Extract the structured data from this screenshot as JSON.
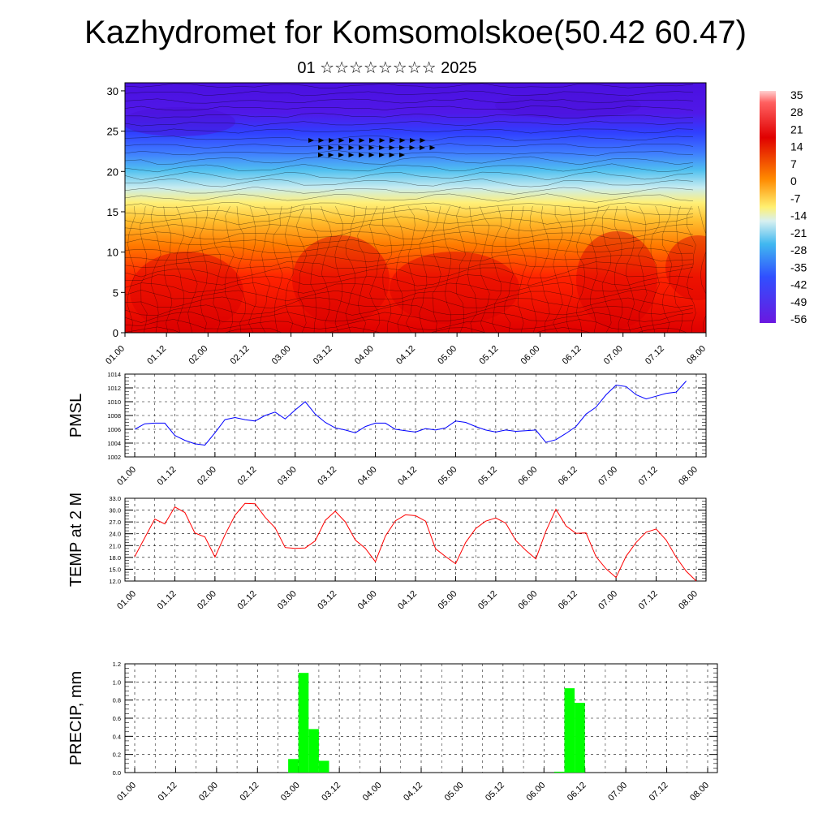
{
  "title": "Kazhydromet for Komsomolskoe(50.42 60.47)",
  "subtitle": "01 ☆☆☆☆☆☆☆☆ 2025",
  "chart_data": [
    {
      "type": "heatmap",
      "xlabel": "",
      "ylabel": "",
      "x_ticklabels": [
        "01.00",
        "01.12",
        "02.00",
        "02.12",
        "03.00",
        "03.12",
        "04.00",
        "04.12",
        "05.00",
        "05.12",
        "06.00",
        "06.12",
        "07.00",
        "07.12",
        "08.00"
      ],
      "y_ticks": [
        0,
        5,
        10,
        15,
        20,
        25,
        30
      ],
      "ylim": [
        0,
        31
      ],
      "colorbar_labels": [
        "35",
        "28",
        "21",
        "14",
        "7",
        "0",
        "-7",
        "-14",
        "-21",
        "-28",
        "-35",
        "-42",
        "-49",
        "-56"
      ],
      "colors": {
        "hot": "#e60000",
        "warm": "#ff9a00",
        "mild": "#ffe860",
        "cool": "#50c0f0",
        "cold": "#3050ff",
        "coldest": "#5010e0"
      }
    },
    {
      "type": "line",
      "ylabel": "PMSL",
      "ylim": [
        1002,
        1014
      ],
      "y_ticklabels": [
        "1002",
        "1004",
        "1006",
        "1008",
        "1010",
        "1012",
        "1014"
      ],
      "x_ticklabels": [
        "01.00",
        "01.12",
        "02.00",
        "02.12",
        "03.00",
        "03.12",
        "04.00",
        "04.12",
        "05.00",
        "05.12",
        "06.00",
        "06.12",
        "07.00",
        "07.12",
        "08.00"
      ],
      "color": "#0000ff",
      "values": [
        1006.0,
        1006.8,
        1006.9,
        1006.9,
        1005.1,
        1004.4,
        1003.9,
        1003.7,
        1005.5,
        1007.4,
        1007.7,
        1007.4,
        1007.2,
        1008.0,
        1008.5,
        1007.5,
        1008.8,
        1010.0,
        1008.2,
        1007.0,
        1006.2,
        1005.9,
        1005.5,
        1006.4,
        1006.9,
        1006.9,
        1006.0,
        1005.8,
        1005.6,
        1006.1,
        1005.9,
        1006.2,
        1007.2,
        1007.0,
        1006.4,
        1005.9,
        1005.6,
        1005.9,
        1005.7,
        1005.8,
        1005.9,
        1004.1,
        1004.5,
        1005.4,
        1006.4,
        1008.2,
        1009.2,
        1011.0,
        1012.4,
        1012.2,
        1011.0,
        1010.4,
        1010.8,
        1011.2,
        1011.4,
        1013.0
      ]
    },
    {
      "type": "line",
      "ylabel": "TEMP at 2 M",
      "ylim": [
        12,
        33
      ],
      "y_ticklabels": [
        "12.0",
        "15.0",
        "18.0",
        "21.0",
        "24.0",
        "27.0",
        "30.0",
        "33.0"
      ],
      "x_ticklabels": [
        "01.00",
        "01.12",
        "02.00",
        "02.12",
        "03.00",
        "03.12",
        "04.00",
        "04.12",
        "05.00",
        "05.12",
        "06.00",
        "06.12",
        "07.00",
        "07.12",
        "08.00"
      ],
      "color": "#ff0000",
      "values": [
        18.2,
        23.0,
        27.7,
        26.5,
        30.8,
        29.4,
        24.2,
        23.2,
        18.1,
        23.7,
        28.7,
        31.7,
        31.6,
        28.2,
        25.5,
        20.5,
        20.3,
        20.4,
        22.2,
        27.4,
        29.7,
        27.0,
        22.4,
        20.3,
        16.9,
        23.4,
        27.3,
        28.8,
        28.6,
        27.2,
        20.2,
        18.2,
        16.4,
        21.8,
        25.3,
        27.2,
        28.0,
        26.7,
        22.3,
        19.8,
        17.6,
        24.6,
        30.2,
        26.0,
        24.1,
        24.2,
        18.2,
        15.1,
        12.9,
        18.3,
        21.8,
        24.4,
        25.2,
        22.4,
        18.0,
        14.5,
        12.0
      ]
    },
    {
      "type": "bar",
      "ylabel": "PRECIP, mm",
      "ylim": [
        0,
        1.2
      ],
      "y_ticklabels": [
        "0.0",
        "0.2",
        "0.4",
        "0.6",
        "0.8",
        "1.0",
        "1.2"
      ],
      "x_ticklabels": [
        "01.00",
        "01.12",
        "02.00",
        "02.12",
        "03.00",
        "03.12",
        "04.00",
        "04.12",
        "05.00",
        "05.12",
        "06.00",
        "06.12",
        "07.00",
        "07.12",
        "08.00"
      ],
      "color": "#00ff00",
      "bars": [
        {
          "x": "02.21",
          "value": 0.15
        },
        {
          "x": "03.00",
          "value": 1.1
        },
        {
          "x": "03.03",
          "value": 0.48
        },
        {
          "x": "03.06",
          "value": 0.13
        },
        {
          "x": "06.03",
          "value": 0.01
        },
        {
          "x": "06.06",
          "value": 0.93
        },
        {
          "x": "06.09",
          "value": 0.77
        }
      ]
    }
  ]
}
